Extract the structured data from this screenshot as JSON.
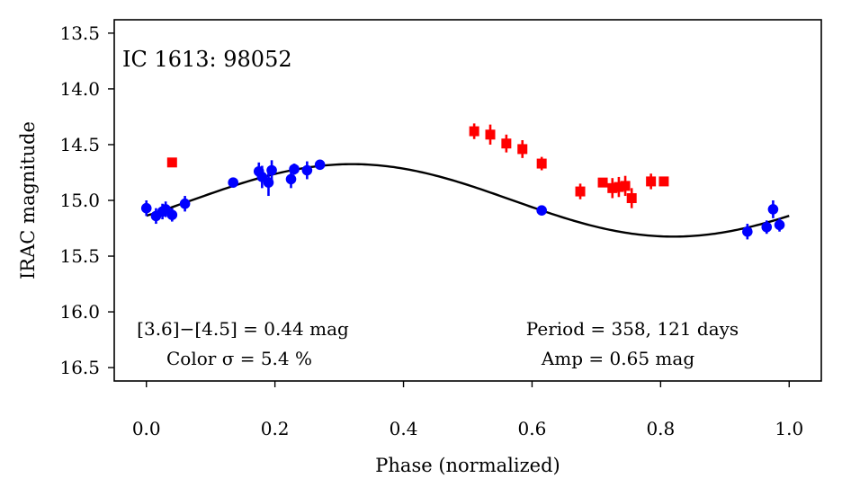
{
  "chart_data": {
    "type": "scatter",
    "title": "IC 1613:  98052",
    "xlabel": "Phase (normalized)",
    "ylabel": "IRAC magnitude",
    "xlim": [
      -0.05,
      1.05
    ],
    "ylim": [
      16.62,
      13.38
    ],
    "y_inverted": true,
    "x_ticks": [
      0.0,
      0.2,
      0.4,
      0.6,
      0.8,
      1.0
    ],
    "x_tick_labels": [
      "0.0",
      "0.2",
      "0.4",
      "0.6",
      "0.8",
      "1.0"
    ],
    "y_ticks": [
      13.5,
      14.0,
      14.5,
      15.0,
      15.5,
      16.0,
      16.5
    ],
    "y_tick_labels": [
      "13.5",
      "14.0",
      "14.5",
      "15.0",
      "15.5",
      "16.0",
      "16.5"
    ],
    "grid": false,
    "series": [
      {
        "name": "blue points",
        "color": "#0000ff",
        "marker": "circle",
        "x": [
          0.0,
          0.015,
          0.025,
          0.03,
          0.04,
          0.06,
          0.135,
          0.175,
          0.18,
          0.19,
          0.195,
          0.225,
          0.23,
          0.25,
          0.27,
          0.615,
          0.935,
          0.965,
          0.975,
          0.985
        ],
        "y": [
          15.07,
          15.14,
          15.1,
          15.08,
          15.13,
          15.03,
          14.84,
          14.74,
          14.79,
          14.84,
          14.73,
          14.81,
          14.72,
          14.73,
          14.68,
          15.09,
          15.28,
          15.24,
          15.08,
          15.22
        ],
        "yerr": [
          0.07,
          0.07,
          0.07,
          0.07,
          0.06,
          0.07,
          0.04,
          0.08,
          0.1,
          0.12,
          0.09,
          0.08,
          0.05,
          0.08,
          0.04,
          0.04,
          0.07,
          0.06,
          0.08,
          0.06
        ]
      },
      {
        "name": "red points",
        "color": "#ff0000",
        "marker": "square",
        "x": [
          0.04,
          0.51,
          0.535,
          0.56,
          0.585,
          0.615,
          0.675,
          0.71,
          0.725,
          0.735,
          0.745,
          0.755,
          0.785,
          0.805
        ],
        "y": [
          14.66,
          14.38,
          14.41,
          14.49,
          14.54,
          14.67,
          14.92,
          14.84,
          14.89,
          14.88,
          14.87,
          14.98,
          14.83,
          14.83
        ],
        "yerr": [
          0.04,
          0.07,
          0.09,
          0.08,
          0.08,
          0.06,
          0.07,
          0.04,
          0.09,
          0.09,
          0.09,
          0.09,
          0.07,
          0.04
        ]
      }
    ],
    "model_curve": {
      "name": "sinusoid fit",
      "color": "#000000",
      "mean": 15.0,
      "amplitude": 0.325,
      "peak_phase": 0.32,
      "x_range": [
        0.0,
        1.0
      ]
    },
    "annotations": {
      "color_diff": "[3.6]−[4.5] = 0.44 mag",
      "color_sigma": "Color σ = 5.4 %",
      "period": "Period = 358, 121 days",
      "amp": "Amp = 0.65 mag"
    }
  }
}
